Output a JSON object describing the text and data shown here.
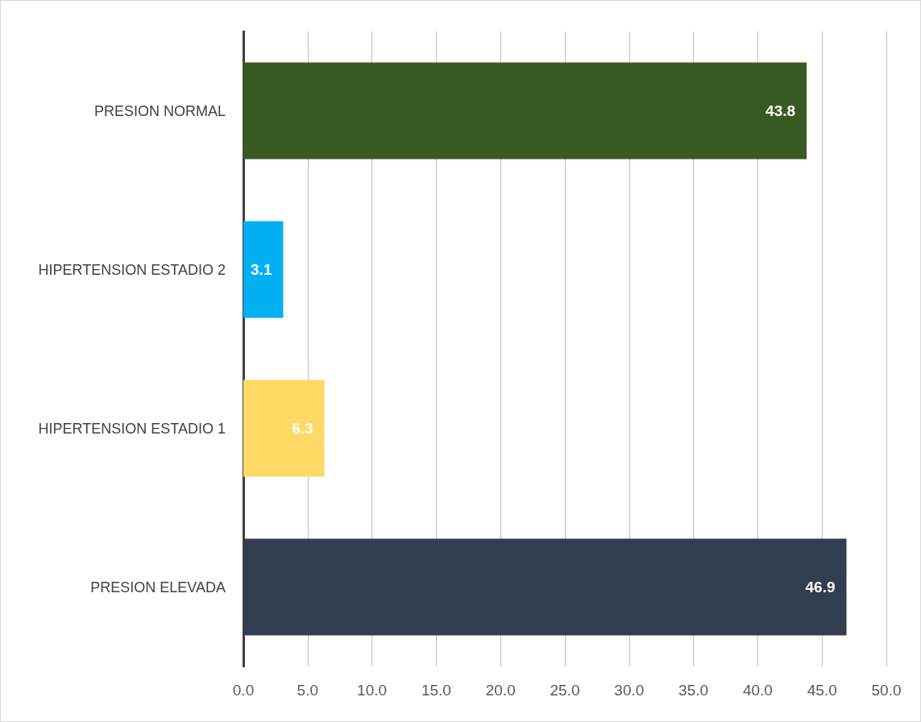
{
  "chart_data": {
    "type": "bar",
    "orientation": "horizontal",
    "categories": [
      "PRESION NORMAL",
      "HIPERTENSION ESTADIO 2",
      "HIPERTENSION ESTADIO 1",
      "PRESION ELEVADA"
    ],
    "values": [
      43.8,
      3.1,
      6.3,
      46.9
    ],
    "colors": [
      "#3a5a24",
      "#00b0f0",
      "#ffd966",
      "#323e50"
    ],
    "xlim": [
      0,
      50
    ],
    "xticks": [
      {
        "value": 0,
        "label": "0.0"
      },
      {
        "value": 5,
        "label": "5.0"
      },
      {
        "value": 10,
        "label": "10.0"
      },
      {
        "value": 15,
        "label": "15.0"
      },
      {
        "value": 20,
        "label": "20.0"
      },
      {
        "value": 25,
        "label": "25.0"
      },
      {
        "value": 30,
        "label": "30.0"
      },
      {
        "value": 35,
        "label": "35.0"
      },
      {
        "value": 40,
        "label": "40.0"
      },
      {
        "value": 45,
        "label": "45.0"
      },
      {
        "value": 50,
        "label": "50.0"
      }
    ],
    "grid": "x",
    "data_labels": true
  }
}
